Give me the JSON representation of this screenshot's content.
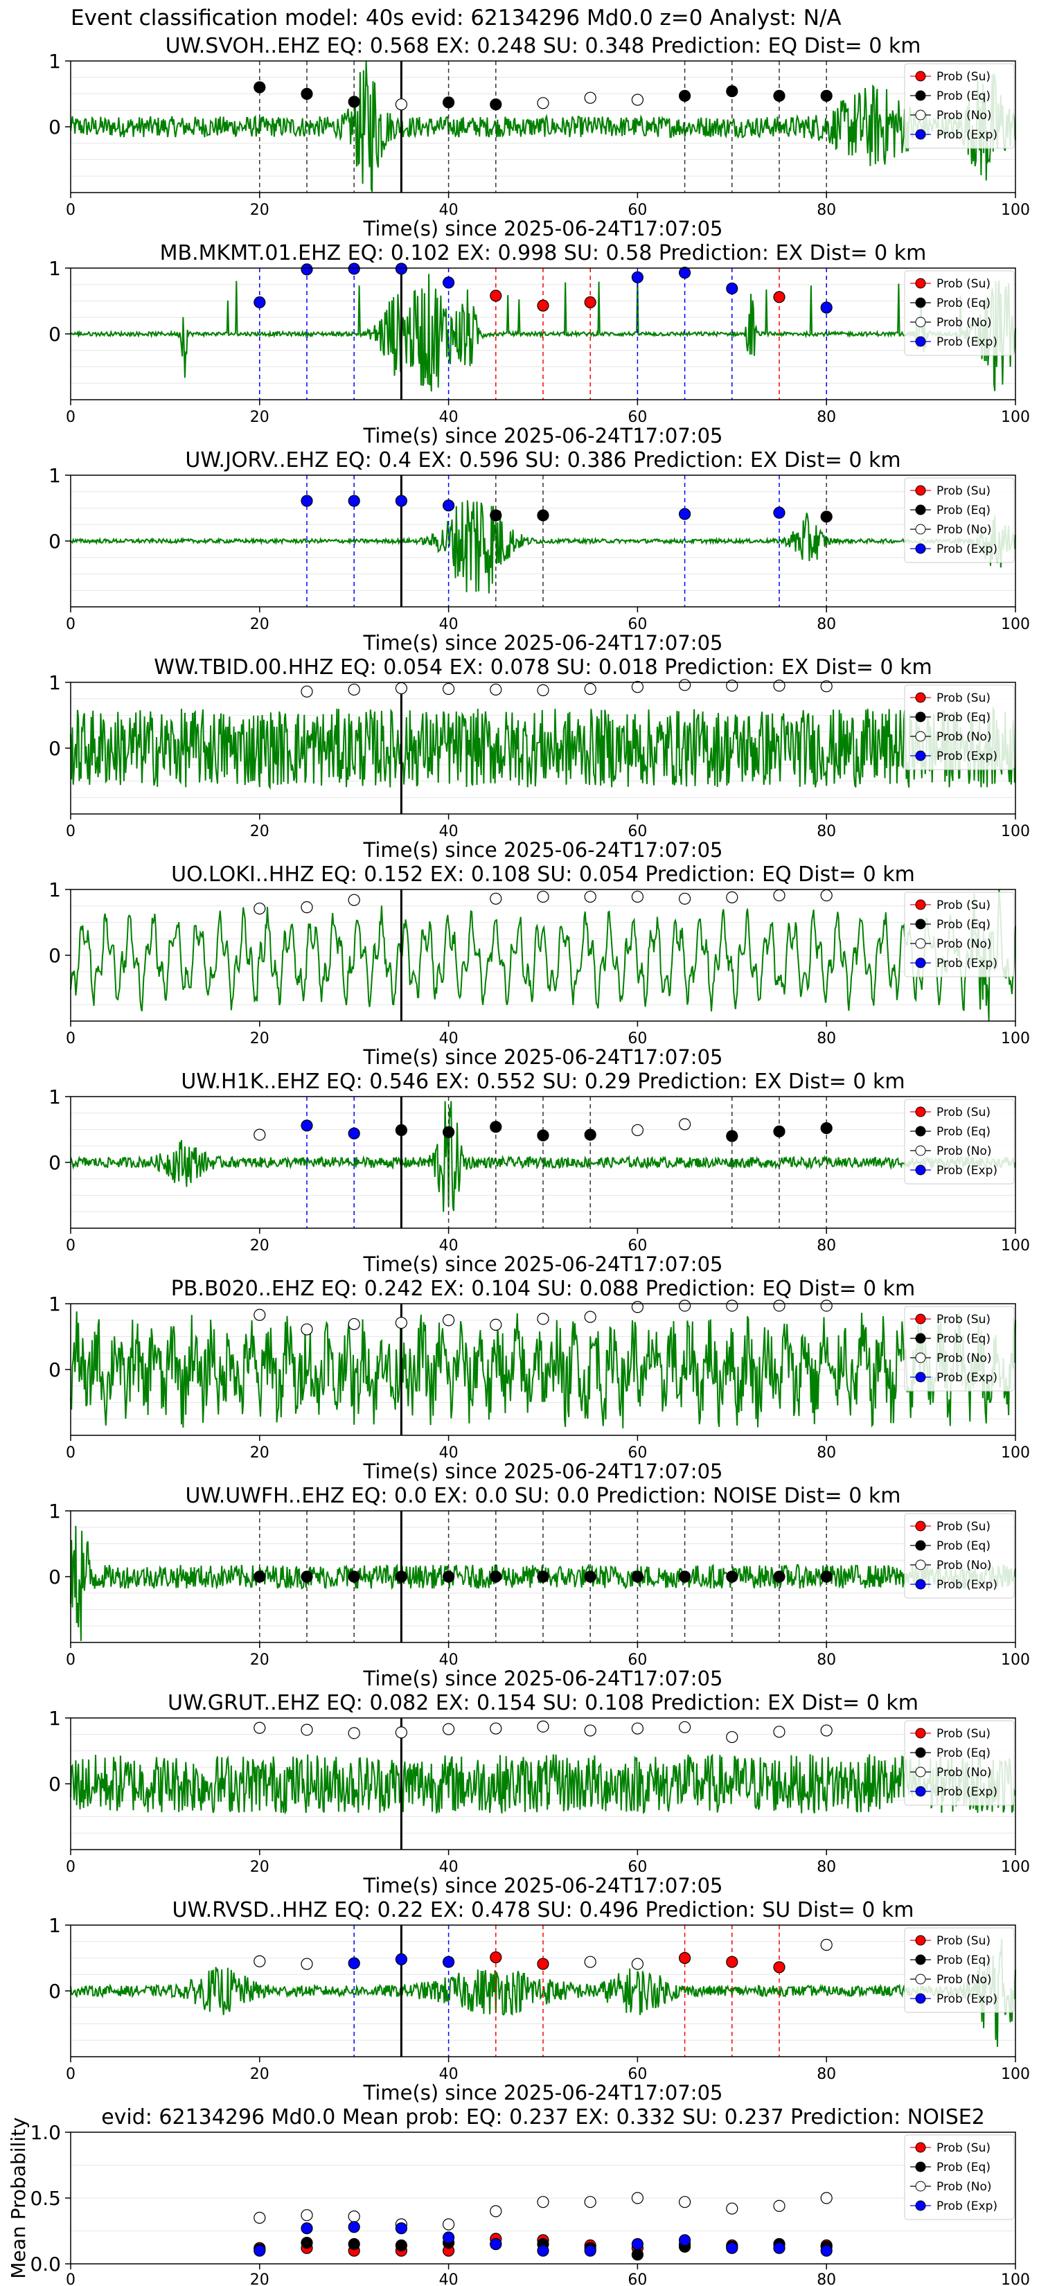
{
  "figure": {
    "title": "Event classification model: 40s evid: 62134296 Md0.0 z=0 Analyst: N/A",
    "legend_labels": [
      "Prob (Su)",
      "Prob (Eq)",
      "Prob (No)",
      "Prob (Exp)"
    ],
    "colors": {
      "trace": "#008000",
      "su": "#ff0000",
      "eq": "#000000",
      "no": "#ffffff",
      "exp": "#0000ff",
      "pick": "#000000"
    }
  },
  "chart_data": [
    {
      "type": "line",
      "station": "UW.SVOH..EHZ",
      "title": "UW.SVOH..EHZ   EQ: 0.568   EX: 0.248   SU: 0.348   Prediction: EQ    Dist= 0 km",
      "xlabel": "Time(s) since 2025-06-24T17:07:05",
      "xlim": [
        0,
        100
      ],
      "ylim": [
        -1,
        1
      ],
      "xticks": [
        0,
        20,
        40,
        60,
        80,
        100
      ],
      "yticks": [
        0,
        1
      ],
      "pick_time": 35,
      "points": [
        {
          "t": 20,
          "p": 0.6,
          "c": "eq"
        },
        {
          "t": 25,
          "p": 0.5,
          "c": "eq"
        },
        {
          "t": 30,
          "p": 0.38,
          "c": "eq"
        },
        {
          "t": 35,
          "p": 0.34,
          "c": "no"
        },
        {
          "t": 40,
          "p": 0.37,
          "c": "eq"
        },
        {
          "t": 45,
          "p": 0.34,
          "c": "eq"
        },
        {
          "t": 50,
          "p": 0.36,
          "c": "no"
        },
        {
          "t": 55,
          "p": 0.44,
          "c": "no"
        },
        {
          "t": 60,
          "p": 0.41,
          "c": "no"
        },
        {
          "t": 65,
          "p": 0.47,
          "c": "eq"
        },
        {
          "t": 70,
          "p": 0.54,
          "c": "eq"
        },
        {
          "t": 75,
          "p": 0.47,
          "c": "eq"
        },
        {
          "t": 80,
          "p": 0.47,
          "c": "eq"
        }
      ]
    },
    {
      "type": "line",
      "station": "MB.MKMT.01.EHZ",
      "title": "MB.MKMT.01.EHZ   EQ: 0.102   EX: 0.998   SU: 0.58   Prediction: EX    Dist= 0 km",
      "xlabel": "Time(s) since 2025-06-24T17:07:05",
      "xlim": [
        0,
        100
      ],
      "ylim": [
        -1,
        1
      ],
      "xticks": [
        0,
        20,
        40,
        60,
        80,
        100
      ],
      "yticks": [
        0,
        1
      ],
      "pick_time": 35,
      "points": [
        {
          "t": 20,
          "p": 0.48,
          "c": "exp"
        },
        {
          "t": 25,
          "p": 0.98,
          "c": "exp"
        },
        {
          "t": 30,
          "p": 0.99,
          "c": "exp"
        },
        {
          "t": 35,
          "p": 0.99,
          "c": "exp"
        },
        {
          "t": 40,
          "p": 0.78,
          "c": "exp"
        },
        {
          "t": 45,
          "p": 0.58,
          "c": "su"
        },
        {
          "t": 50,
          "p": 0.43,
          "c": "su"
        },
        {
          "t": 55,
          "p": 0.48,
          "c": "su"
        },
        {
          "t": 60,
          "p": 0.86,
          "c": "exp"
        },
        {
          "t": 65,
          "p": 0.93,
          "c": "exp"
        },
        {
          "t": 70,
          "p": 0.69,
          "c": "exp"
        },
        {
          "t": 75,
          "p": 0.56,
          "c": "su"
        },
        {
          "t": 80,
          "p": 0.4,
          "c": "exp"
        }
      ]
    },
    {
      "type": "line",
      "station": "UW.JORV..EHZ",
      "title": "UW.JORV..EHZ   EQ: 0.4   EX: 0.596   SU: 0.386   Prediction: EX    Dist= 0 km",
      "xlabel": "Time(s) since 2025-06-24T17:07:05",
      "xlim": [
        0,
        100
      ],
      "ylim": [
        -1,
        1
      ],
      "xticks": [
        0,
        20,
        40,
        60,
        80,
        100
      ],
      "yticks": [
        0,
        1
      ],
      "pick_time": 35,
      "points": [
        {
          "t": 25,
          "p": 0.61,
          "c": "exp"
        },
        {
          "t": 30,
          "p": 0.61,
          "c": "exp"
        },
        {
          "t": 35,
          "p": 0.61,
          "c": "exp"
        },
        {
          "t": 40,
          "p": 0.54,
          "c": "exp"
        },
        {
          "t": 45,
          "p": 0.39,
          "c": "eq"
        },
        {
          "t": 50,
          "p": 0.39,
          "c": "eq"
        },
        {
          "t": 65,
          "p": 0.41,
          "c": "exp"
        },
        {
          "t": 75,
          "p": 0.43,
          "c": "exp"
        },
        {
          "t": 80,
          "p": 0.37,
          "c": "eq"
        }
      ]
    },
    {
      "type": "line",
      "station": "WW.TBID.00.HHZ",
      "title": "WW.TBID.00.HHZ   EQ: 0.054   EX: 0.078   SU: 0.018   Prediction: EX    Dist= 0 km",
      "xlabel": "Time(s) since 2025-06-24T17:07:05",
      "xlim": [
        0,
        100
      ],
      "ylim": [
        -1,
        1
      ],
      "xticks": [
        0,
        20,
        40,
        60,
        80,
        100
      ],
      "yticks": [
        0,
        1
      ],
      "pick_time": 35,
      "points": [
        {
          "t": 25,
          "p": 0.86,
          "c": "no"
        },
        {
          "t": 30,
          "p": 0.89,
          "c": "no"
        },
        {
          "t": 35,
          "p": 0.91,
          "c": "no"
        },
        {
          "t": 40,
          "p": 0.9,
          "c": "no"
        },
        {
          "t": 45,
          "p": 0.89,
          "c": "no"
        },
        {
          "t": 50,
          "p": 0.88,
          "c": "no"
        },
        {
          "t": 55,
          "p": 0.9,
          "c": "no"
        },
        {
          "t": 60,
          "p": 0.93,
          "c": "no"
        },
        {
          "t": 65,
          "p": 0.96,
          "c": "no"
        },
        {
          "t": 70,
          "p": 0.95,
          "c": "no"
        },
        {
          "t": 75,
          "p": 0.95,
          "c": "no"
        },
        {
          "t": 80,
          "p": 0.94,
          "c": "no"
        }
      ]
    },
    {
      "type": "line",
      "station": "UO.LOKI..HHZ",
      "title": "UO.LOKI..HHZ   EQ: 0.152   EX: 0.108   SU: 0.054   Prediction: EQ    Dist= 0 km",
      "xlabel": "Time(s) since 2025-06-24T17:07:05",
      "xlim": [
        0,
        100
      ],
      "ylim": [
        -1,
        1
      ],
      "xticks": [
        0,
        20,
        40,
        60,
        80,
        100
      ],
      "yticks": [
        0,
        1
      ],
      "pick_time": 35,
      "points": [
        {
          "t": 20,
          "p": 0.71,
          "c": "no"
        },
        {
          "t": 25,
          "p": 0.73,
          "c": "no"
        },
        {
          "t": 30,
          "p": 0.84,
          "c": "no"
        },
        {
          "t": 45,
          "p": 0.86,
          "c": "no"
        },
        {
          "t": 50,
          "p": 0.89,
          "c": "no"
        },
        {
          "t": 55,
          "p": 0.89,
          "c": "no"
        },
        {
          "t": 60,
          "p": 0.89,
          "c": "no"
        },
        {
          "t": 65,
          "p": 0.86,
          "c": "no"
        },
        {
          "t": 70,
          "p": 0.88,
          "c": "no"
        },
        {
          "t": 75,
          "p": 0.91,
          "c": "no"
        },
        {
          "t": 80,
          "p": 0.91,
          "c": "no"
        }
      ]
    },
    {
      "type": "line",
      "station": "UW.H1K..EHZ",
      "title": "UW.H1K..EHZ   EQ: 0.546   EX: 0.552   SU: 0.29   Prediction: EX    Dist= 0 km",
      "xlabel": "Time(s) since 2025-06-24T17:07:05",
      "xlim": [
        0,
        100
      ],
      "ylim": [
        -1,
        1
      ],
      "xticks": [
        0,
        20,
        40,
        60,
        80,
        100
      ],
      "yticks": [
        0,
        1
      ],
      "pick_time": 35,
      "points": [
        {
          "t": 20,
          "p": 0.42,
          "c": "no"
        },
        {
          "t": 25,
          "p": 0.56,
          "c": "exp"
        },
        {
          "t": 30,
          "p": 0.44,
          "c": "exp"
        },
        {
          "t": 35,
          "p": 0.49,
          "c": "eq"
        },
        {
          "t": 40,
          "p": 0.46,
          "c": "eq"
        },
        {
          "t": 45,
          "p": 0.54,
          "c": "eq"
        },
        {
          "t": 50,
          "p": 0.41,
          "c": "eq"
        },
        {
          "t": 55,
          "p": 0.42,
          "c": "eq"
        },
        {
          "t": 60,
          "p": 0.49,
          "c": "no"
        },
        {
          "t": 65,
          "p": 0.58,
          "c": "no"
        },
        {
          "t": 70,
          "p": 0.4,
          "c": "eq"
        },
        {
          "t": 75,
          "p": 0.47,
          "c": "eq"
        },
        {
          "t": 80,
          "p": 0.52,
          "c": "eq"
        }
      ]
    },
    {
      "type": "line",
      "station": "PB.B020..EHZ",
      "title": "PB.B020..EHZ   EQ: 0.242   EX: 0.104   SU: 0.088   Prediction: EQ    Dist= 0 km",
      "xlabel": "Time(s) since 2025-06-24T17:07:05",
      "xlim": [
        0,
        100
      ],
      "ylim": [
        -1,
        1
      ],
      "xticks": [
        0,
        20,
        40,
        60,
        80,
        100
      ],
      "yticks": [
        0,
        1
      ],
      "pick_time": 35,
      "points": [
        {
          "t": 20,
          "p": 0.83,
          "c": "no"
        },
        {
          "t": 25,
          "p": 0.61,
          "c": "no"
        },
        {
          "t": 30,
          "p": 0.69,
          "c": "no"
        },
        {
          "t": 35,
          "p": 0.71,
          "c": "no"
        },
        {
          "t": 40,
          "p": 0.75,
          "c": "no"
        },
        {
          "t": 45,
          "p": 0.68,
          "c": "no"
        },
        {
          "t": 50,
          "p": 0.77,
          "c": "no"
        },
        {
          "t": 55,
          "p": 0.8,
          "c": "no"
        },
        {
          "t": 60,
          "p": 0.95,
          "c": "no"
        },
        {
          "t": 65,
          "p": 0.97,
          "c": "no"
        },
        {
          "t": 70,
          "p": 0.97,
          "c": "no"
        },
        {
          "t": 75,
          "p": 0.97,
          "c": "no"
        },
        {
          "t": 80,
          "p": 0.97,
          "c": "no"
        }
      ]
    },
    {
      "type": "line",
      "station": "UW.UWFH..EHZ",
      "title": "UW.UWFH..EHZ   EQ: 0.0   EX: 0.0   SU: 0.0   Prediction: NOISE    Dist= 0 km",
      "xlabel": "Time(s) since 2025-06-24T17:07:05",
      "xlim": [
        0,
        100
      ],
      "ylim": [
        -1,
        1
      ],
      "xticks": [
        0,
        20,
        40,
        60,
        80,
        100
      ],
      "yticks": [
        0,
        1
      ],
      "pick_time": 35,
      "points": [
        {
          "t": 20,
          "p": 0,
          "c": "eq"
        },
        {
          "t": 25,
          "p": 0,
          "c": "eq"
        },
        {
          "t": 30,
          "p": 0,
          "c": "eq"
        },
        {
          "t": 35,
          "p": 0,
          "c": "eq"
        },
        {
          "t": 40,
          "p": 0,
          "c": "eq"
        },
        {
          "t": 45,
          "p": 0,
          "c": "eq"
        },
        {
          "t": 50,
          "p": 0,
          "c": "eq"
        },
        {
          "t": 55,
          "p": 0,
          "c": "eq"
        },
        {
          "t": 60,
          "p": 0,
          "c": "eq"
        },
        {
          "t": 65,
          "p": 0,
          "c": "eq"
        },
        {
          "t": 70,
          "p": 0,
          "c": "eq"
        },
        {
          "t": 75,
          "p": 0,
          "c": "eq"
        },
        {
          "t": 80,
          "p": 0,
          "c": "eq"
        }
      ]
    },
    {
      "type": "line",
      "station": "UW.GRUT..EHZ",
      "title": "UW.GRUT..EHZ   EQ: 0.082   EX: 0.154   SU: 0.108   Prediction: EX    Dist= 0 km",
      "xlabel": "Time(s) since 2025-06-24T17:07:05",
      "xlim": [
        0,
        100
      ],
      "ylim": [
        -1,
        1
      ],
      "xticks": [
        0,
        20,
        40,
        60,
        80,
        100
      ],
      "yticks": [
        0,
        1
      ],
      "pick_time": 35,
      "points": [
        {
          "t": 20,
          "p": 0.85,
          "c": "no"
        },
        {
          "t": 25,
          "p": 0.82,
          "c": "no"
        },
        {
          "t": 30,
          "p": 0.77,
          "c": "no"
        },
        {
          "t": 35,
          "p": 0.78,
          "c": "no"
        },
        {
          "t": 40,
          "p": 0.83,
          "c": "no"
        },
        {
          "t": 45,
          "p": 0.84,
          "c": "no"
        },
        {
          "t": 50,
          "p": 0.87,
          "c": "no"
        },
        {
          "t": 55,
          "p": 0.81,
          "c": "no"
        },
        {
          "t": 60,
          "p": 0.84,
          "c": "no"
        },
        {
          "t": 65,
          "p": 0.86,
          "c": "no"
        },
        {
          "t": 70,
          "p": 0.71,
          "c": "no"
        },
        {
          "t": 75,
          "p": 0.79,
          "c": "no"
        },
        {
          "t": 80,
          "p": 0.81,
          "c": "no"
        }
      ]
    },
    {
      "type": "line",
      "station": "UW.RVSD..HHZ",
      "title": "UW.RVSD..HHZ   EQ: 0.22   EX: 0.478   SU: 0.496   Prediction: SU    Dist= 0 km",
      "xlabel": "Time(s) since 2025-06-24T17:07:05",
      "xlim": [
        0,
        100
      ],
      "ylim": [
        -1,
        1
      ],
      "xticks": [
        0,
        20,
        40,
        60,
        80,
        100
      ],
      "yticks": [
        0,
        1
      ],
      "pick_time": 35,
      "points": [
        {
          "t": 20,
          "p": 0.45,
          "c": "no"
        },
        {
          "t": 25,
          "p": 0.41,
          "c": "no"
        },
        {
          "t": 30,
          "p": 0.42,
          "c": "exp"
        },
        {
          "t": 35,
          "p": 0.48,
          "c": "exp"
        },
        {
          "t": 40,
          "p": 0.44,
          "c": "exp"
        },
        {
          "t": 45,
          "p": 0.51,
          "c": "su"
        },
        {
          "t": 50,
          "p": 0.41,
          "c": "su"
        },
        {
          "t": 55,
          "p": 0.44,
          "c": "no"
        },
        {
          "t": 60,
          "p": 0.41,
          "c": "no"
        },
        {
          "t": 65,
          "p": 0.5,
          "c": "su"
        },
        {
          "t": 70,
          "p": 0.44,
          "c": "su"
        },
        {
          "t": 75,
          "p": 0.36,
          "c": "su"
        },
        {
          "t": 80,
          "p": 0.7,
          "c": "no"
        }
      ]
    },
    {
      "type": "scatter",
      "title": "evid: 62134296  Md0.0   Mean prob:   EQ: 0.237   EX: 0.332   SU: 0.237   Prediction: NOISE2",
      "ylabel": "Mean Probability",
      "xlim": [
        0,
        100
      ],
      "ylim": [
        0,
        1
      ],
      "xticks": [
        0,
        20,
        40,
        60,
        80,
        100
      ],
      "yticks": [
        "0.0",
        "0.5",
        "1.0"
      ],
      "x": [
        20,
        25,
        30,
        35,
        40,
        45,
        50,
        55,
        60,
        65,
        70,
        75,
        80
      ],
      "series": [
        {
          "name": "Prob (Su)",
          "key": "su",
          "values": [
            0.12,
            0.12,
            0.1,
            0.1,
            0.1,
            0.19,
            0.18,
            0.14,
            0.12,
            0.15,
            0.14,
            0.15,
            0.14
          ]
        },
        {
          "name": "Prob (Eq)",
          "key": "eq",
          "values": [
            0.11,
            0.16,
            0.15,
            0.14,
            0.16,
            0.15,
            0.15,
            0.12,
            0.07,
            0.13,
            0.13,
            0.15,
            0.13
          ]
        },
        {
          "name": "Prob (No)",
          "key": "no",
          "values": [
            0.35,
            0.37,
            0.36,
            0.3,
            0.3,
            0.4,
            0.47,
            0.47,
            0.5,
            0.47,
            0.42,
            0.44,
            0.5
          ]
        },
        {
          "name": "Prob (Exp)",
          "key": "exp",
          "values": [
            0.1,
            0.27,
            0.28,
            0.27,
            0.2,
            0.15,
            0.1,
            0.1,
            0.15,
            0.18,
            0.12,
            0.12,
            0.1
          ]
        }
      ]
    }
  ]
}
